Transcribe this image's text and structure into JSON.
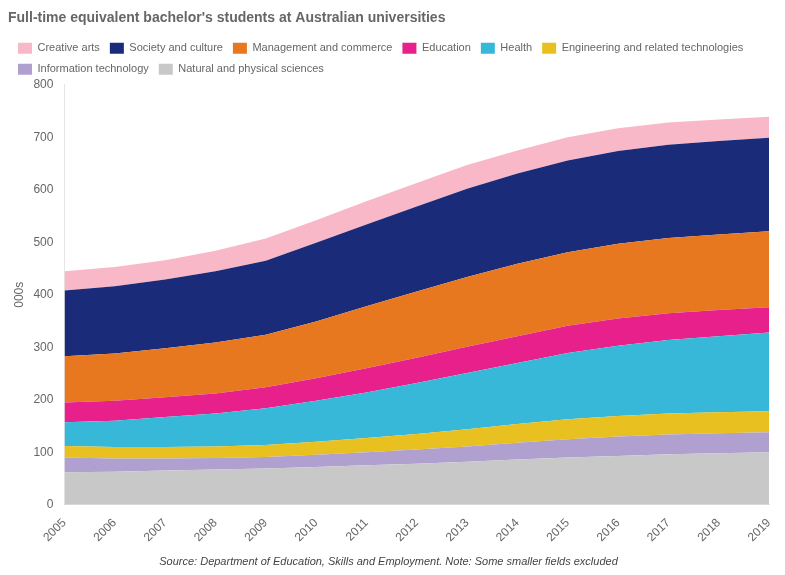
{
  "chart_data": {
    "type": "area",
    "title": "Full-time equivalent bachelor's students at Australian universities",
    "ylabel": "000s",
    "caption": "Source: Department of Education, Skills and Employment. Note: Some smaller fields excluded",
    "x": [
      2005,
      2006,
      2007,
      2008,
      2009,
      2010,
      2011,
      2012,
      2013,
      2014,
      2015,
      2016,
      2017,
      2018,
      2019
    ],
    "xlim": [
      2005,
      2019
    ],
    "xticks": [
      2005,
      2006,
      2007,
      2008,
      2009,
      2010,
      2011,
      2012,
      2013,
      2014,
      2015,
      2016,
      2017,
      2018,
      2019
    ],
    "series": [
      {
        "name": "Natural and physical sciences",
        "color": "#c8c8c8",
        "values": [
          62,
          63,
          65,
          67,
          69,
          72,
          75,
          78,
          82,
          86,
          90,
          93,
          96,
          98,
          100
        ]
      },
      {
        "name": "Information technology",
        "color": "#b0a0d0",
        "values": [
          28,
          25,
          23,
          22,
          22,
          23,
          25,
          27,
          29,
          32,
          35,
          37,
          38,
          38,
          38
        ]
      },
      {
        "name": "Engineering and related technologies",
        "color": "#e8c020",
        "values": [
          22,
          22,
          22,
          22,
          23,
          25,
          27,
          30,
          33,
          36,
          38,
          39,
          40,
          40,
          40
        ]
      },
      {
        "name": "Health",
        "color": "#38b8d8",
        "values": [
          45,
          50,
          57,
          63,
          70,
          78,
          87,
          97,
          107,
          116,
          126,
          134,
          140,
          145,
          150
        ]
      },
      {
        "name": "Education",
        "color": "#e8208c",
        "values": [
          38,
          38,
          38,
          38,
          40,
          43,
          46,
          48,
          50,
          51,
          52,
          52,
          51,
          50,
          48
        ]
      },
      {
        "name": "Management and commerce",
        "color": "#e87820",
        "values": [
          88,
          90,
          93,
          97,
          100,
          108,
          118,
          126,
          133,
          138,
          140,
          142,
          143,
          144,
          145
        ]
      },
      {
        "name": "Society and culture",
        "color": "#1a2b7a",
        "values": [
          125,
          128,
          131,
          136,
          141,
          150,
          156,
          162,
          168,
          172,
          175,
          177,
          178,
          178,
          178
        ]
      },
      {
        "name": "Creative arts",
        "color": "#f8b8c8",
        "values": [
          37,
          37,
          37,
          39,
          42,
          43,
          44,
          45,
          45,
          44,
          44,
          43,
          42,
          41,
          40
        ]
      }
    ],
    "ylim": [
      0,
      800
    ],
    "yticks": [
      0,
      100,
      200,
      300,
      400,
      500,
      600,
      700,
      800
    ],
    "stacked": true,
    "grid": false,
    "legend": "upper left"
  }
}
